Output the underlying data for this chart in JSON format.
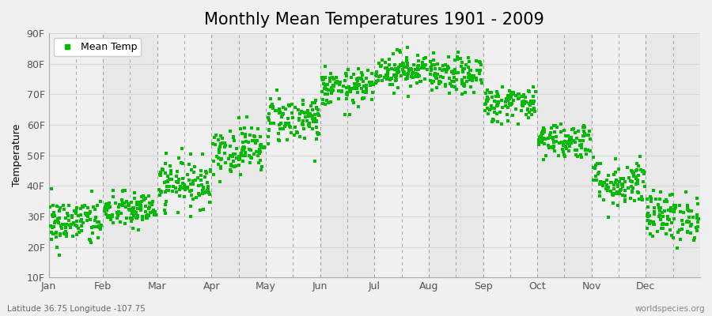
{
  "title": "Monthly Mean Temperatures 1901 - 2009",
  "ylabel": "Temperature",
  "yticks": [
    10,
    20,
    30,
    40,
    50,
    60,
    70,
    80,
    90
  ],
  "ytick_labels": [
    "10F",
    "20F",
    "30F",
    "40F",
    "50F",
    "60F",
    "70F",
    "80F",
    "90F"
  ],
  "ylim": [
    10,
    90
  ],
  "months": [
    "Jan",
    "Feb",
    "Mar",
    "Apr",
    "May",
    "Jun",
    "Jul",
    "Aug",
    "Sep",
    "Oct",
    "Nov",
    "Dec"
  ],
  "dot_color": "#00BB00",
  "bg_color": "#F0F0F0",
  "bg_alt_color": "#E8E8E8",
  "legend_label": "Mean Temp",
  "bottom_left": "Latitude 36.75 Longitude -107.75",
  "bottom_right": "worldspecies.org",
  "mean_temps": [
    28,
    32,
    41,
    52,
    62,
    72,
    78,
    76,
    67,
    55,
    41,
    30
  ],
  "std_temps": [
    4,
    3,
    4,
    4,
    4,
    3,
    3,
    3,
    3,
    3,
    4,
    4
  ],
  "n_years": 109,
  "title_fontsize": 15,
  "axis_fontsize": 9,
  "legend_fontsize": 9,
  "dot_size": 8
}
